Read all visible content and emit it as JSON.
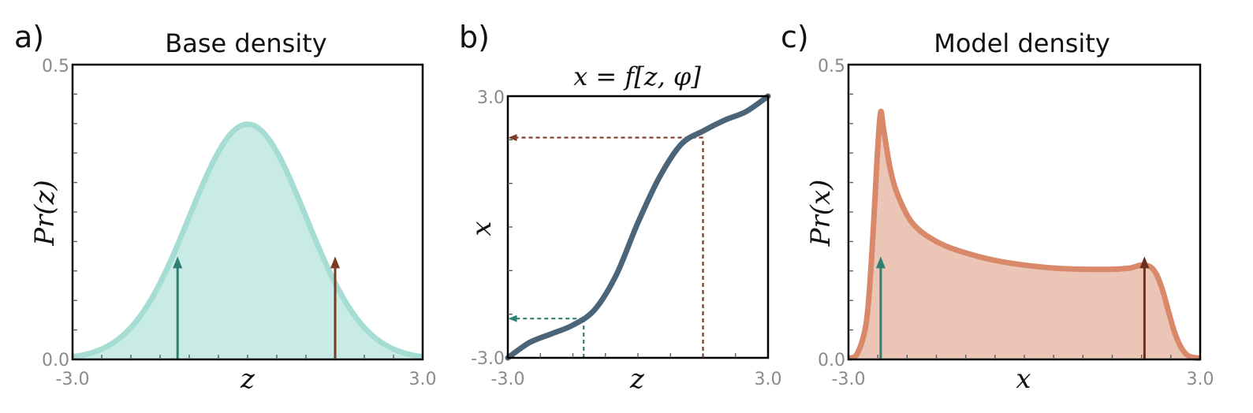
{
  "chart_data": [
    {
      "id": "a",
      "type": "area",
      "panel_label": "a)",
      "title": "Base density",
      "xlabel": "z",
      "ylabel": "Pr(z)",
      "xlim": [
        -3.0,
        3.0
      ],
      "ylim": [
        0.0,
        0.5
      ],
      "x_tick_labels": [
        "-3.0",
        "3.0"
      ],
      "y_tick_labels": [
        "0.0",
        "0.5"
      ],
      "distribution": {
        "kind": "normal",
        "mean": 0.0,
        "std": 1.0
      },
      "color": "#a5dcd4",
      "fill_color": "#c8ebe5",
      "arrows": [
        {
          "x": -1.2,
          "y": 0.17,
          "color": "#2f7f73"
        },
        {
          "x": 1.5,
          "y": 0.17,
          "color": "#7a3a24"
        }
      ]
    },
    {
      "id": "b",
      "type": "line",
      "panel_label": "b)",
      "title": "x = f[z, φ]",
      "xlabel": "z",
      "ylabel": "x",
      "xlim": [
        -3.0,
        3.0
      ],
      "ylim": [
        -3.0,
        3.0
      ],
      "x_tick_labels": [
        "-3.0",
        "3.0"
      ],
      "y_tick_labels": [
        "-3.0",
        "3.0"
      ],
      "x": [
        -3.0,
        -2.5,
        -2.0,
        -1.5,
        -1.0,
        -0.5,
        0.0,
        0.5,
        1.0,
        1.5,
        2.0,
        2.5,
        3.0
      ],
      "y": [
        -3.0,
        -2.65,
        -2.45,
        -2.25,
        -1.9,
        -1.1,
        0.1,
        1.15,
        1.9,
        2.2,
        2.45,
        2.65,
        3.0
      ],
      "color": "#4b6478",
      "mappings": [
        {
          "z": -1.25,
          "x": -2.1,
          "color": "#2f7f73"
        },
        {
          "z": 1.5,
          "x": 2.05,
          "color": "#7a3a24"
        }
      ]
    },
    {
      "id": "c",
      "type": "area",
      "panel_label": "c)",
      "title": "Model density",
      "xlabel": "x",
      "ylabel": "Pr(x)",
      "xlim": [
        -3.0,
        3.0
      ],
      "ylim": [
        0.0,
        0.5
      ],
      "x_tick_labels": [
        "-3.0",
        "3.0"
      ],
      "y_tick_labels": [
        "0.0",
        "0.5"
      ],
      "x": [
        -3.0,
        -2.85,
        -2.7,
        -2.62,
        -2.55,
        -2.5,
        -2.45,
        -2.4,
        -2.3,
        -2.2,
        -2.0,
        -1.8,
        -1.5,
        -1.2,
        -0.8,
        -0.4,
        0.0,
        0.5,
        1.0,
        1.5,
        1.8,
        2.0,
        2.15,
        2.25,
        2.35,
        2.45,
        2.55,
        2.65,
        2.75,
        2.85,
        3.0
      ],
      "y": [
        0.002,
        0.01,
        0.06,
        0.15,
        0.27,
        0.36,
        0.42,
        0.39,
        0.33,
        0.29,
        0.245,
        0.22,
        0.2,
        0.187,
        0.175,
        0.166,
        0.16,
        0.155,
        0.153,
        0.153,
        0.155,
        0.16,
        0.157,
        0.145,
        0.12,
        0.085,
        0.05,
        0.025,
        0.01,
        0.004,
        0.002
      ],
      "color": "#d9896a",
      "fill_color": "#ebc5b6",
      "arrows": [
        {
          "x": -2.45,
          "y": 0.17,
          "color": "#2f7f73"
        },
        {
          "x": 2.05,
          "y": 0.17,
          "color": "#6b2f1f"
        }
      ]
    }
  ]
}
